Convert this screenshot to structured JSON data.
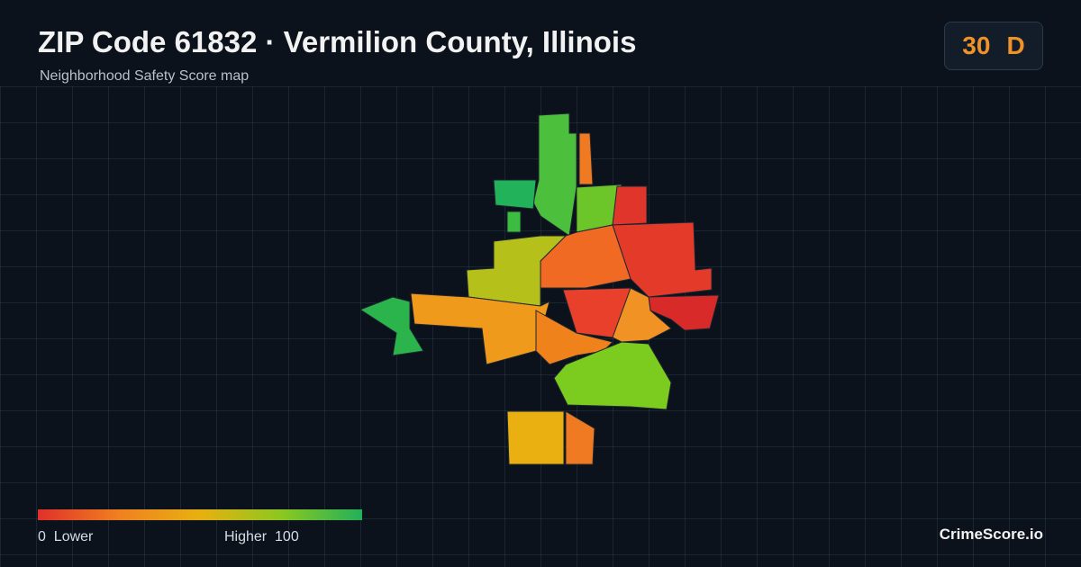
{
  "header": {
    "title": "ZIP Code 61832 · Vermilion County, Illinois",
    "subtitle": "Neighborhood Safety Score map"
  },
  "score": {
    "value": 30,
    "grade": "D"
  },
  "legend": {
    "min": 0,
    "min_label": "Lower",
    "max_label": "Higher",
    "max": 100
  },
  "brand": "CrimeScore.io"
}
